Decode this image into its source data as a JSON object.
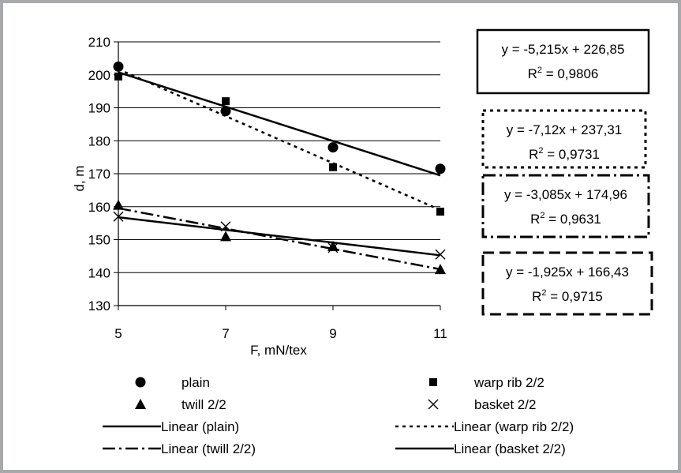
{
  "chart_data": {
    "type": "scatter",
    "xlabel": "F, mN/tex",
    "ylabel": "d,  m",
    "xlim": [
      5,
      11
    ],
    "ylim": [
      130,
      210
    ],
    "x_ticks": [
      "5",
      "7",
      "9",
      "11"
    ],
    "y_ticks": [
      "130",
      "140",
      "150",
      "160",
      "170",
      "180",
      "190",
      "200",
      "210"
    ],
    "grid": "horizontal",
    "legend_position": "bottom",
    "series": [
      {
        "name": "plain",
        "marker": "circle",
        "x": [
          5,
          7,
          9,
          11
        ],
        "y": [
          202.5,
          189,
          178,
          171.5
        ]
      },
      {
        "name": "warp rib 2/2",
        "marker": "square",
        "x": [
          5,
          7,
          9,
          11
        ],
        "y": [
          199.5,
          192,
          172,
          158.5
        ]
      },
      {
        "name": "twill 2/2",
        "marker": "triangle",
        "x": [
          5,
          7,
          9,
          11
        ],
        "y": [
          160.5,
          151,
          148,
          141
        ]
      },
      {
        "name": "basket 2/2",
        "marker": "x",
        "x": [
          5,
          7,
          9,
          11
        ],
        "y": [
          157,
          154,
          147.5,
          145.5
        ]
      }
    ],
    "trendlines": [
      {
        "name": "Linear (plain)",
        "style": "solid",
        "slope": -5.215,
        "intercept": 226.85
      },
      {
        "name": "Linear (warp rib 2/2)",
        "style": "dotted",
        "slope": -7.12,
        "intercept": 237.31
      },
      {
        "name": "Linear (twill 2/2)",
        "style": "dashdot",
        "slope": -3.085,
        "intercept": 174.96
      },
      {
        "name": "Linear (basket 2/2)",
        "style": "solid",
        "slope": -1.925,
        "intercept": 166.43
      }
    ],
    "annotations": [
      {
        "equation": "y = -5,215x + 226,85",
        "r2_label": "R",
        "r2_sup": "2",
        "r2_value": " = 0,9806",
        "border": "solid"
      },
      {
        "equation": "y = -7,12x + 237,31",
        "r2_label": "R",
        "r2_sup": "2",
        "r2_value": " = 0,9731",
        "border": "dotted"
      },
      {
        "equation": "y = -3,085x + 174,96",
        "r2_label": "R",
        "r2_sup": "2",
        "r2_value": " = 0,9631",
        "border": "dashdot"
      },
      {
        "equation": "y = -1,925x + 166,43",
        "r2_label": "R",
        "r2_sup": "2",
        "r2_value": " = 0,9715",
        "border": "dashed"
      }
    ]
  }
}
